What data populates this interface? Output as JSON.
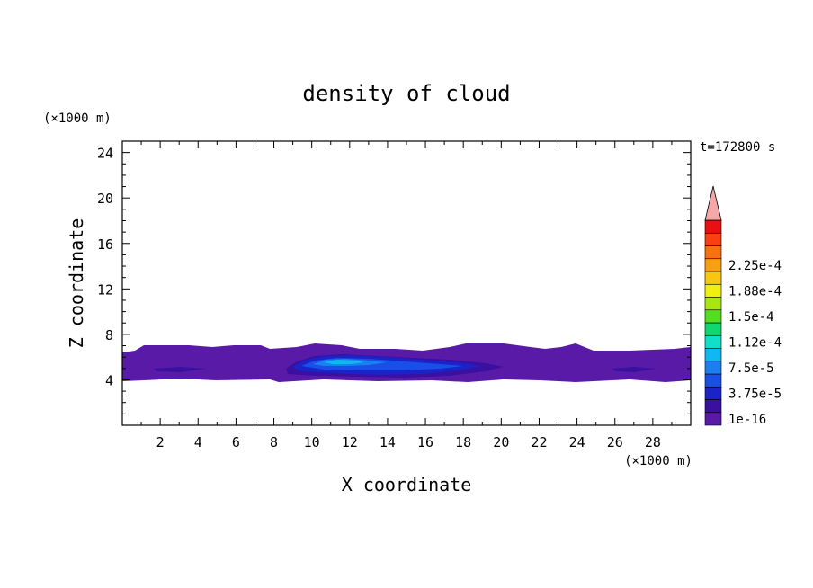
{
  "chart_data": {
    "type": "heatmap",
    "title": "density of cloud",
    "xlabel": "X coordinate",
    "ylabel": "Z coordinate",
    "x_unit": "(×1000 m)",
    "y_unit": "(×1000 m)",
    "time_label": "t=172800 s",
    "xlim": [
      0,
      30
    ],
    "ylim": [
      0,
      25
    ],
    "x_ticks": [
      "2",
      "4",
      "6",
      "8",
      "10",
      "12",
      "14",
      "16",
      "18",
      "20",
      "22",
      "24",
      "26",
      "28"
    ],
    "y_ticks": [
      "4",
      "8",
      "12",
      "16",
      "20",
      "24"
    ],
    "colorbar": {
      "labels": [
        "1e-16",
        "3.75e-5",
        "7.5e-5",
        "1.12e-4",
        "1.5e-4",
        "1.88e-4",
        "2.25e-4"
      ],
      "colors": [
        "#5a1aa8",
        "#3a10a0",
        "#1a22c8",
        "#1a4ee8",
        "#1a80f0",
        "#10b8f0",
        "#10e0c8",
        "#10d870",
        "#50e020",
        "#a8e810",
        "#f0f010",
        "#f8c810",
        "#f8a010",
        "#f87010",
        "#f84010",
        "#e81010"
      ],
      "extend_color": "#f4a8a8"
    },
    "cloud_layer": {
      "z_bottom": 4,
      "z_top": 6.5,
      "x_range": [
        0,
        30
      ],
      "core_x_range": [
        8.5,
        20
      ],
      "core_max_level": "7.5e-5"
    }
  }
}
